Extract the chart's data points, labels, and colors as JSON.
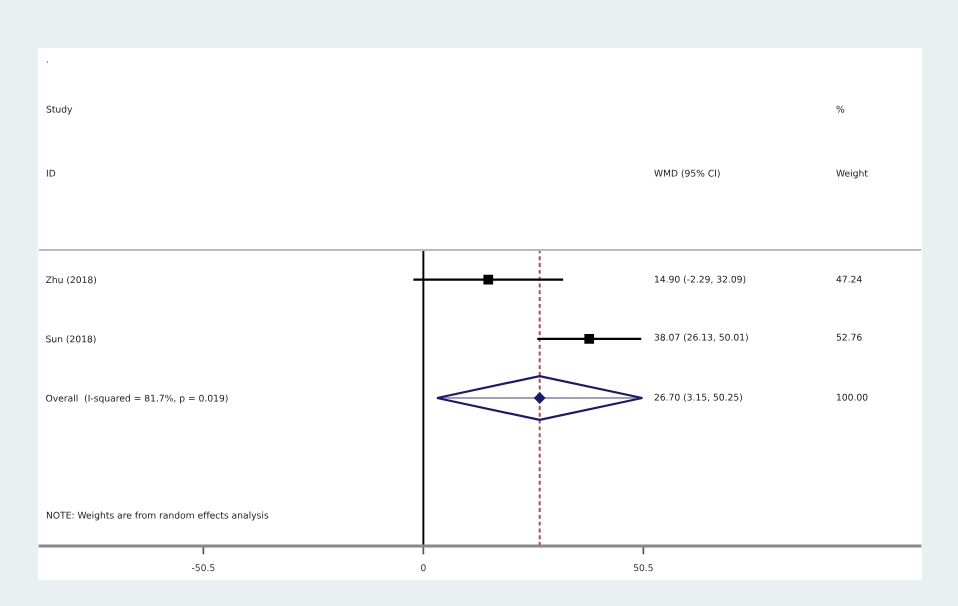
{
  "chart_data": {
    "type": "scatter",
    "orientation": "horizontal",
    "categories": [
      "Zhu (2018)",
      "Sun (2018)",
      "Overall  (I-squared = 81.7%, p = 0.019)",
      null,
      null
    ],
    "series": [
      {
        "type": "scatter",
        "marker": "square",
        "color": "#000000",
        "values": [
          14.9,
          38.07,
          null,
          null,
          null
        ],
        "errors": [
          [
            -2.29,
            32.09
          ],
          [
            26.13,
            50.01
          ],
          null,
          null,
          null
        ]
      },
      {
        "type": "scatter",
        "marker": "diamond",
        "color": "#1a1a6e",
        "values": [
          null,
          null,
          26.7,
          null,
          null
        ],
        "errors": [
          null,
          null,
          [
            3.15,
            50.25
          ],
          null,
          null
        ]
      }
    ],
    "annotations": [
      ".",
      "Study",
      "ID",
      "WMD (95% CI)",
      "%",
      "Weight",
      "14.90 (-2.29, 32.09)",
      "47.24",
      "38.07 (26.13, 50.01)",
      "52.76",
      "26.70 (3.15, 50.25)",
      "100.00",
      "NOTE: Weights are from random effects analysis"
    ],
    "xlim": [
      -88,
      114
    ],
    "xticks": [
      -50.5,
      0,
      50.5
    ],
    "ref_lines": [
      {
        "axis": "x",
        "value": 0,
        "color": "#000000",
        "line_style": "solid"
      },
      {
        "axis": "x",
        "value": 26.7,
        "color": "#c04040",
        "line_style": "dashed"
      }
    ],
    "grid": false,
    "legend": false
  }
}
